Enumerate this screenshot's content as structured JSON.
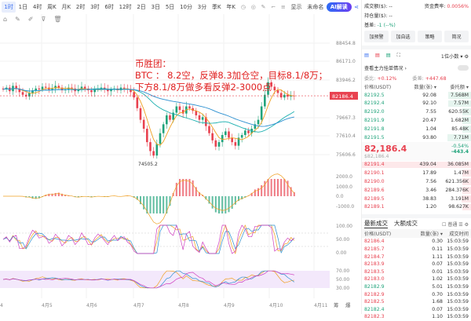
{
  "toolbar": {
    "intervals": [
      "1时",
      "1日",
      "4时",
      "周K",
      "月K",
      "2时",
      "3时",
      "6时",
      "12时",
      "2日",
      "3日",
      "5日",
      "10分",
      "3分",
      "季K",
      "年K"
    ],
    "active": 0,
    "icons": [
      "clock-icon",
      "camera-icon",
      "pen-icon",
      "crop-icon",
      "bars-icon"
    ],
    "display": "显示",
    "cloud": "未命名",
    "ai": "AI解读"
  },
  "draw_tools": [
    "home-icon",
    "edit-icon",
    "brush-icon",
    "filter-icon",
    "trash-icon"
  ],
  "annotation": {
    "line1": "币胜团：",
    "line2": "BTC ： 8.2空，反弹8.3加仓空，目标8.1/8万；",
    "line3": "下方8.1/8万做多看反弹2-3000点"
  },
  "chart": {
    "price_ticks": [
      "88454.8",
      "86171.0",
      "83946.2",
      "79667.3",
      "77610.4",
      "75606.6"
    ],
    "last_price": "82186.4",
    "low_label": "74505.2",
    "macd_ticks": [
      "2000.0",
      "1000.0",
      "0.0",
      "-1000.0"
    ],
    "kdj_ticks": [
      "100.00",
      "50.00",
      "0.00"
    ],
    "rsi_ticks": [
      "70.00",
      "50.00",
      "30.00"
    ],
    "x_labels": [
      "4",
      "4月5",
      "4月6",
      "4月7",
      "4月8",
      "4月9",
      "4月10",
      "4月11"
    ],
    "corner": [
      "筹",
      "爆"
    ],
    "closes": [
      82900,
      83100,
      82700,
      83300,
      83000,
      82600,
      82300,
      82100,
      82500,
      82800,
      83000,
      82900,
      83200,
      83100,
      82900,
      83000,
      83300,
      83100,
      82800,
      82900,
      83100,
      83000,
      82700,
      82900,
      83200,
      83000,
      82800,
      82600,
      82900,
      83000,
      83100,
      82900,
      82700,
      82900,
      83000,
      82800,
      83100,
      83000,
      82900,
      82600,
      82000,
      80800,
      79500,
      78500,
      77000,
      76000,
      75500,
      76800,
      78000,
      79000,
      80000,
      79500,
      80300,
      81000,
      80600,
      80200,
      81000,
      80800,
      80500,
      80000,
      79500,
      79800,
      78800,
      78000,
      77200,
      76500,
      77000,
      77800,
      78200,
      77500,
      77000,
      76600,
      77500,
      77800,
      78300,
      78000,
      78500,
      79000,
      79500,
      81000,
      82300,
      83700,
      83200,
      82800,
      82500,
      82000,
      82300,
      82100,
      82200,
      82186
    ]
  },
  "panel": {
    "turnover_label": "成交额($):",
    "turnover": "--",
    "funding_label": "资金费率:",
    "funding": "0.0056%",
    "oi_label": "持仓量($):",
    "oi": "--",
    "basis_label": "基差:",
    "basis": "-1 (--%)",
    "buttons": [
      "加预警",
      "加自选",
      "策略",
      "简况"
    ],
    "decimals": "1位小数",
    "main_orders": "查看主力挂单情况",
    "ratio_label": "委比:",
    "ratio": "+0.12%",
    "diff_label": "委差:",
    "diff": "+447.68",
    "headers": [
      "价格(USDT)",
      "数量(张)",
      "委托额"
    ],
    "asks": [
      [
        "82192.5",
        "92.08",
        "7.568M"
      ],
      [
        "82192.4",
        "92.10",
        "7.57M"
      ],
      [
        "82192.0",
        "7.55",
        "620.55K"
      ],
      [
        "82191.9",
        "20.47",
        "1.682M"
      ],
      [
        "82191.8",
        "1.04",
        "85.48K"
      ],
      [
        "82191.5",
        "93.80",
        "7.71M"
      ]
    ],
    "price": "82,186.4",
    "price_usd": "$82,186.4",
    "change_pct": "-0.54%",
    "change": "-443.4",
    "bids": [
      [
        "82191.4",
        "439.04",
        "36.085M"
      ],
      [
        "82190.1",
        "17.89",
        "1.47M"
      ],
      [
        "82190.0",
        "7.56",
        "621.356K"
      ],
      [
        "82189.6",
        "3.46",
        "284.376K"
      ],
      [
        "82189.5",
        "38.83",
        "3.191M"
      ],
      [
        "82189.1",
        "1.20",
        "98.627K"
      ]
    ],
    "trade_tabs": [
      "最新成交",
      "大额成交"
    ],
    "normal": "普通",
    "trade_headers": [
      "价格(USDT)",
      "数量(张)",
      "成交时间"
    ],
    "trades": [
      [
        "82186.4",
        "0.30",
        "15:03:59",
        "r"
      ],
      [
        "82185.7",
        "0.11",
        "15:03:59",
        "r"
      ],
      [
        "82184.7",
        "1.11",
        "15:03:59",
        "r"
      ],
      [
        "82183.9",
        "0.07",
        "15:03:59",
        "r"
      ],
      [
        "82183.5",
        "0.01",
        "15:03:59",
        "r"
      ],
      [
        "82183.0",
        "1.02",
        "15:03:59",
        "r"
      ],
      [
        "82182.9",
        "5.01",
        "15:03:59",
        "g"
      ],
      [
        "82182.9",
        "0.70",
        "15:03:59",
        "r"
      ],
      [
        "82182.5",
        "1.68",
        "15:03:59",
        "r"
      ],
      [
        "82182.4",
        "0.07",
        "15:03:59",
        "g"
      ],
      [
        "82182.3",
        "1.10",
        "15:03:59",
        "r"
      ]
    ]
  },
  "colors": {
    "up": "#1fa37a",
    "down": "#e8414f",
    "accent": "#3a6ff0"
  }
}
